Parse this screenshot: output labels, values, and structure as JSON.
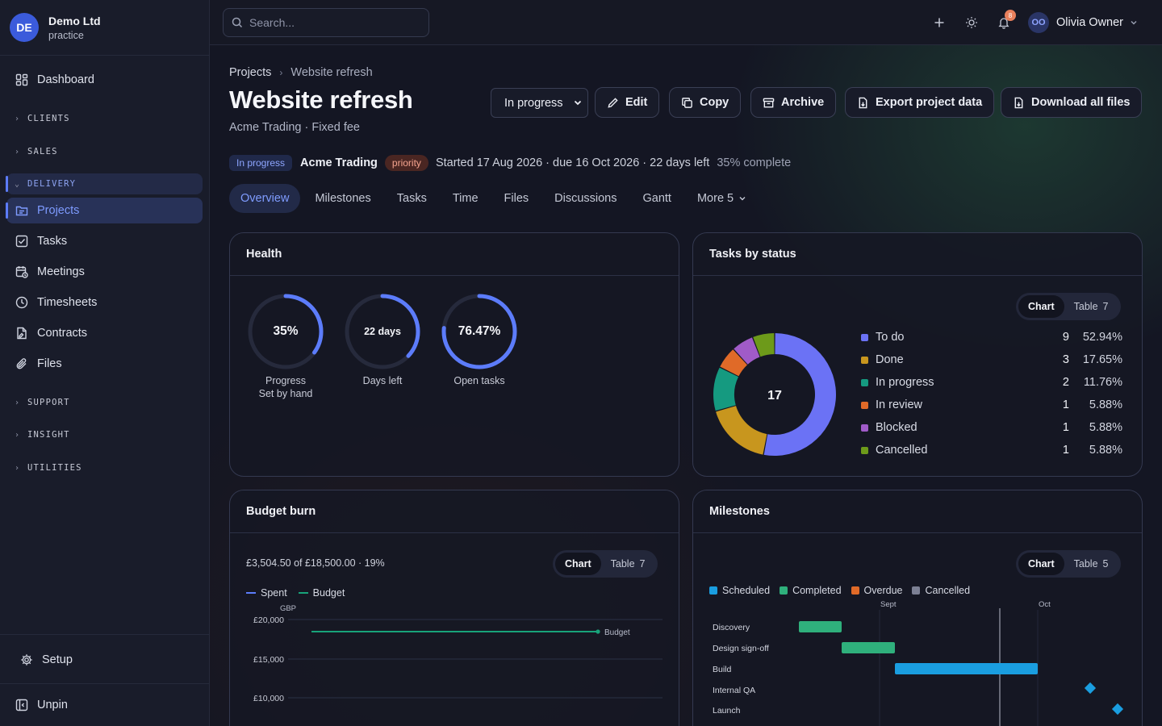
{
  "org": {
    "initials": "DE",
    "name": "Demo Ltd",
    "subtitle": "practice"
  },
  "sidebar": {
    "dashboard": "Dashboard",
    "sections": {
      "clients": "CLIENTS",
      "sales": "SALES",
      "delivery": "DELIVERY",
      "support": "SUPPORT",
      "insight": "INSIGHT",
      "utilities": "UTILITIES"
    },
    "items": [
      "Projects",
      "Tasks",
      "Meetings",
      "Timesheets",
      "Contracts",
      "Files"
    ],
    "setup": "Setup",
    "unpin": "Unpin"
  },
  "topbar": {
    "search_placeholder": "Search...",
    "notification_count": "8",
    "user_initials": "OO",
    "user_name": "Olivia Owner"
  },
  "breadcrumb": {
    "parent": "Projects",
    "current": "Website refresh"
  },
  "project": {
    "title": "Website refresh",
    "subtitle": "Acme Trading · Fixed fee",
    "status_select": "In progress",
    "status_pill": "In progress",
    "client": "Acme Trading",
    "priority": "priority",
    "dates": "Started 17 Aug 2026 · due 16 Oct 2026 · 22 days left",
    "percent_complete": "35% complete"
  },
  "actions": {
    "edit": "Edit",
    "copy": "Copy",
    "archive": "Archive",
    "export": "Export project data",
    "download": "Download all files"
  },
  "tabs": [
    "Overview",
    "Milestones",
    "Tasks",
    "Time",
    "Files",
    "Discussions",
    "Gantt",
    "More 5"
  ],
  "health": {
    "title": "Health",
    "rings": [
      {
        "value": "35%",
        "fraction": 0.35,
        "label": "Progress",
        "sublabel": "Set by hand"
      },
      {
        "value": "22 days",
        "fraction": 0.37,
        "label": "Days left",
        "sublabel": ""
      },
      {
        "value": "76.47%",
        "fraction": 0.7647,
        "label": "Open tasks",
        "sublabel": ""
      }
    ],
    "ring_color": "#5c7cfa"
  },
  "tasks_by_status": {
    "title": "Tasks by status",
    "toggle": {
      "chart": "Chart",
      "table": "Table",
      "table_count": "7"
    },
    "total": "17",
    "statuses": [
      {
        "name": "To do",
        "count": "9",
        "pct": "52.94%",
        "value": 9,
        "color": "#6b72f5"
      },
      {
        "name": "Done",
        "count": "3",
        "pct": "17.65%",
        "value": 3,
        "color": "#c8961e"
      },
      {
        "name": "In progress",
        "count": "2",
        "pct": "11.76%",
        "value": 2,
        "color": "#159a80"
      },
      {
        "name": "In review",
        "count": "1",
        "pct": "5.88%",
        "value": 1,
        "color": "#e06a28"
      },
      {
        "name": "Blocked",
        "count": "1",
        "pct": "5.88%",
        "value": 1,
        "color": "#a05bc8"
      },
      {
        "name": "Cancelled",
        "count": "1",
        "pct": "5.88%",
        "value": 1,
        "color": "#6d9a1a"
      }
    ]
  },
  "budget": {
    "title": "Budget burn",
    "summary": "£3,504.50 of £18,500.00 · 19%",
    "toggle": {
      "chart": "Chart",
      "table": "Table",
      "table_count": "7"
    },
    "legend": {
      "spent": "Spent",
      "budget": "Budget"
    },
    "spent_color": "#5c7cfa",
    "budget_color": "#18a37a",
    "unit": "GBP",
    "y_ticks": [
      "£20,000",
      "£15,000",
      "£10,000"
    ],
    "budget_label": "Budget"
  },
  "milestones": {
    "title": "Milestones",
    "toggle": {
      "chart": "Chart",
      "table": "Table",
      "table_count": "5"
    },
    "legend": [
      {
        "name": "Scheduled",
        "color": "#1a9ee0"
      },
      {
        "name": "Completed",
        "color": "#2fb07c"
      },
      {
        "name": "Overdue",
        "color": "#e06a28"
      },
      {
        "name": "Cancelled",
        "color": "#7c8094"
      }
    ],
    "months": [
      "Sept",
      "Oct"
    ],
    "rows": [
      "Discovery",
      "Design sign-off",
      "Build",
      "Internal QA",
      "Launch"
    ]
  },
  "chart_data": [
    {
      "type": "pie",
      "title": "Tasks by status",
      "categories": [
        "To do",
        "Done",
        "In progress",
        "In review",
        "Blocked",
        "Cancelled"
      ],
      "values": [
        9,
        3,
        2,
        1,
        1,
        1
      ],
      "total": 17,
      "legend": "right"
    },
    {
      "type": "line",
      "title": "Budget burn",
      "ylabel": "GBP",
      "y_ticks": [
        20000,
        15000,
        10000
      ],
      "series": [
        {
          "name": "Spent",
          "values": []
        },
        {
          "name": "Budget",
          "values": [
            18500,
            18500
          ]
        }
      ],
      "legend": "top-left"
    },
    {
      "type": "bar",
      "title": "Milestones",
      "categories": [
        "Discovery",
        "Design sign-off",
        "Build",
        "Internal QA",
        "Launch"
      ],
      "x_ticks": [
        "Sept",
        "Oct"
      ],
      "series": [
        {
          "name": "Completed",
          "items": [
            "Discovery",
            "Design sign-off"
          ]
        },
        {
          "name": "Scheduled",
          "items": [
            "Build",
            "Internal QA",
            "Launch"
          ]
        }
      ],
      "legend": "top-left"
    }
  ]
}
